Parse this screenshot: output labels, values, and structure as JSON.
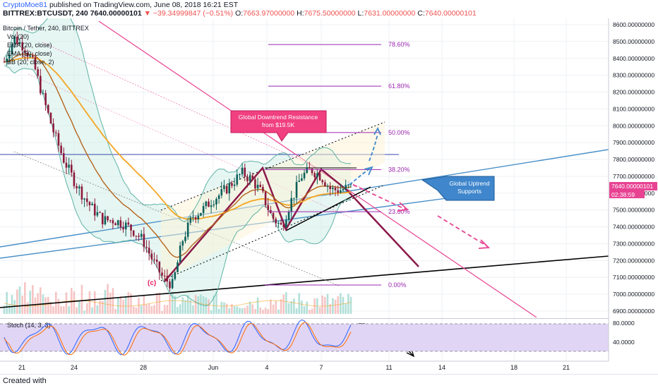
{
  "header": {
    "author": "CryptoMoe81",
    "published_text": "published on TradingView.com, June 08, 2018 16:21 EST",
    "symbol": "BITTREX:BTCUSDT, 240",
    "last_price": "7640.00000101",
    "change": "▼ −39.34999847 (−0.51%)",
    "o_label": "O:",
    "o_value": "7663.97000000",
    "h_label": "H:",
    "h_value": "7675.50000000",
    "l_label": "L:",
    "l_value": "7631.00000000",
    "c_label": "C:",
    "c_value": "7640.00000101"
  },
  "legend": {
    "title": "Bitcoin / Tether, 240, BITTREX",
    "vol": "Vol (20)",
    "ema1": "EMA (20, close)",
    "ema2": "EMA (50, close)",
    "bb": "BB (20, close, 2)"
  },
  "price_axis": {
    "labels": [
      "8600.00000000",
      "8500.00000000",
      "8400.00000000",
      "8300.00000000",
      "8200.00000000",
      "8100.00000000",
      "8000.00000000",
      "7900.00000000",
      "7800.00000000",
      "7700.00000000",
      "7600.00000000",
      "7500.00000000",
      "7400.00000000",
      "7300.00000000",
      "7200.00000000",
      "7100.00000000",
      "7000.00000000",
      "6900.00000000"
    ],
    "last_price_tag": "7640.00000101",
    "countdown_tag": "02:38:59"
  },
  "time_axis": {
    "labels": [
      "21",
      "24",
      "28",
      "Jun",
      "4",
      "7",
      "11",
      "14",
      "18",
      "21"
    ]
  },
  "stoch": {
    "label": "Stoch (14, 3, 3)",
    "axis_labels": [
      "80.0000",
      "40.0000"
    ]
  },
  "fib_levels": [
    {
      "label": "78.60%"
    },
    {
      "label": "61.80%"
    },
    {
      "label": "50.00%"
    },
    {
      "label": "38.20%"
    },
    {
      "label": "23.60%"
    },
    {
      "label": "0.00%"
    }
  ],
  "annotations": {
    "resistance": [
      "Global Downtrend Resistance",
      "from $19.5K"
    ],
    "uptrend": [
      "Global Uptrend",
      "Supports"
    ],
    "wave": "(c)"
  },
  "colors": {
    "up": "#26a69a",
    "down": "#ef5350",
    "bull_candle": "#0b5f5a",
    "bear_candle": "#8b1a3a",
    "ema20": "#b5651d",
    "ema50": "#f5a623",
    "bb": "#5fb3a6",
    "resistance": "#e84393",
    "uptrend": "#4a90c8",
    "fib": "#9c27b0",
    "stoch_fill": "#e1d5f5",
    "label_box": "#f0407f",
    "uptrend_box": "#3f86cc"
  },
  "chart_data": {
    "type": "candlestick",
    "title": "Bitcoin / Tether, 240, BITTREX",
    "ylim": [
      6870,
      8650
    ],
    "y_ticks": [
      8600,
      8500,
      8400,
      8300,
      8200,
      8100,
      8000,
      7900,
      7800,
      7700,
      7600,
      7500,
      7400,
      7300,
      7200,
      7100,
      7000,
      6900
    ],
    "x_ticks": [
      "21",
      "24",
      "28",
      "Jun",
      "4",
      "7",
      "11",
      "14",
      "18",
      "21"
    ],
    "last_price": 7640.00000101,
    "fibonacci": [
      {
        "level": "78.60%",
        "price": 8482
      },
      {
        "level": "61.80%",
        "price": 8235
      },
      {
        "level": "50.00%",
        "price": 7960
      },
      {
        "level": "38.20%",
        "price": 7740
      },
      {
        "level": "23.60%",
        "price": 7490
      },
      {
        "level": "0.00%",
        "price": 7055
      }
    ],
    "price_path": [
      8380,
      8520,
      8470,
      8360,
      8150,
      7960,
      7800,
      7680,
      7580,
      7500,
      7440,
      7440,
      7420,
      7380,
      7320,
      7200,
      7100,
      7055,
      7320,
      7460,
      7500,
      7560,
      7600,
      7660,
      7720,
      7680,
      7600,
      7460,
      7400,
      7560,
      7700,
      7740,
      7700,
      7620,
      7620,
      7640
    ],
    "stoch_levels": [
      80,
      40
    ]
  }
}
